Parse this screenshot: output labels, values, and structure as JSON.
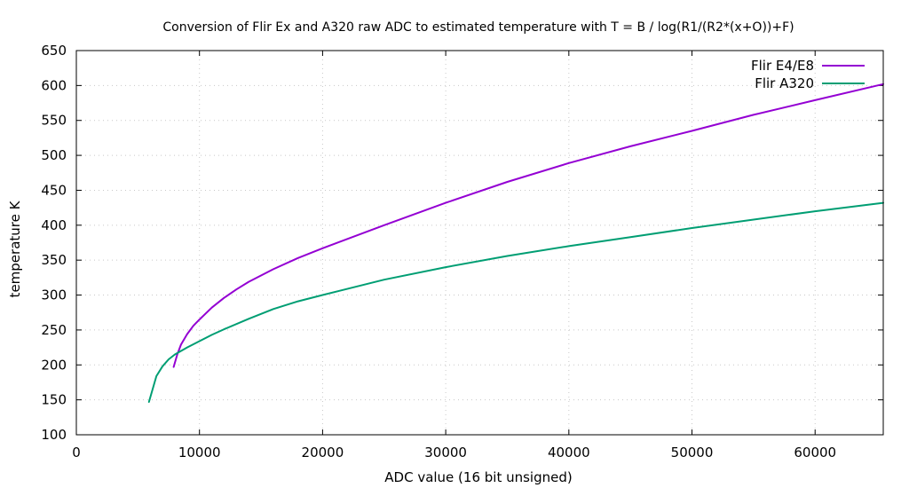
{
  "chart_data": {
    "type": "line",
    "title": "Conversion of Flir Ex and A320 raw ADC to estimated temperature with  T = B / log(R1/(R2*(x+O))+F)",
    "xlabel": "ADC value (16 bit unsigned)",
    "ylabel": "temperature K",
    "xlim": [
      0,
      65535
    ],
    "ylim": [
      100,
      650
    ],
    "xticks": [
      0,
      10000,
      20000,
      30000,
      40000,
      50000,
      60000
    ],
    "xtick_labels": [
      "0",
      "10000",
      "20000",
      "30000",
      "40000",
      "50000",
      "60000"
    ],
    "yticks": [
      100,
      150,
      200,
      250,
      300,
      350,
      400,
      450,
      500,
      550,
      600,
      650
    ],
    "ytick_labels": [
      "100",
      "150",
      "200",
      "250",
      "300",
      "350",
      "400",
      "450",
      "500",
      "550",
      "600",
      "650"
    ],
    "grid": true,
    "legend_position": "top-right",
    "series": [
      {
        "name": "Flir E4/E8",
        "color": "#9400d3",
        "x": [
          7900,
          8200,
          8500,
          9000,
          9500,
          10000,
          11000,
          12000,
          13000,
          14000,
          16000,
          18000,
          20000,
          25000,
          30000,
          35000,
          40000,
          45000,
          50000,
          55000,
          60000,
          65535
        ],
        "y": [
          197,
          215,
          229,
          244,
          256,
          265,
          282,
          296,
          308,
          319,
          337,
          353,
          367,
          400,
          432,
          462,
          489,
          513,
          535,
          558,
          579,
          602
        ]
      },
      {
        "name": "Flir A320",
        "color": "#009e73",
        "x": [
          5900,
          6500,
          7000,
          7500,
          8000,
          9000,
          10000,
          11000,
          12000,
          14000,
          16000,
          18000,
          20000,
          25000,
          30000,
          35000,
          40000,
          45000,
          50000,
          55000,
          60000,
          65535
        ],
        "y": [
          147,
          184,
          198,
          208,
          215,
          225,
          234,
          243,
          251,
          266,
          280,
          291,
          300,
          322,
          340,
          356,
          370,
          383,
          396,
          408,
          420,
          432
        ]
      }
    ]
  }
}
